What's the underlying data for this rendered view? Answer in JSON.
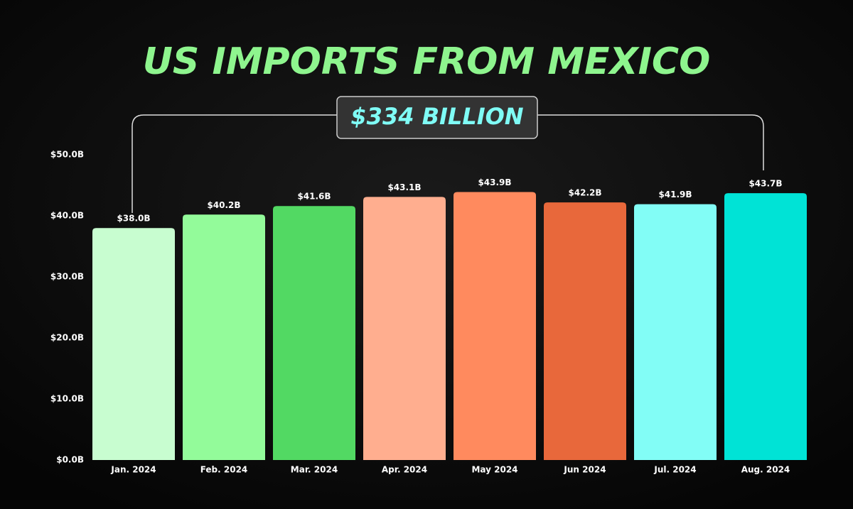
{
  "chart_data": {
    "type": "bar",
    "title": "US IMPORTS FROM MEXICO",
    "annotation": "$334 BILLION",
    "categories": [
      "Jan. 2024",
      "Feb. 2024",
      "Mar. 2024",
      "Apr. 2024",
      "May 2024",
      "Jun 2024",
      "Jul. 2024",
      "Aug. 2024"
    ],
    "values": [
      38.0,
      40.2,
      41.6,
      43.1,
      43.9,
      42.2,
      41.9,
      43.7
    ],
    "value_labels": [
      "$38.0B",
      "$40.2B",
      "$41.6B",
      "$43.1B",
      "$43.9B",
      "$42.2B",
      "$41.9B",
      "$43.7B"
    ],
    "colors": [
      "#c8fdd0",
      "#93fb9a",
      "#52d963",
      "#ffae8f",
      "#ff8a5e",
      "#e8683b",
      "#82fdf6",
      "#00e3d6"
    ],
    "ylim": [
      0,
      50
    ],
    "yticks": [
      {
        "value": 0,
        "label": "$0.0B"
      },
      {
        "value": 10,
        "label": "$10.0B"
      },
      {
        "value": 20,
        "label": "$20.0B"
      },
      {
        "value": 30,
        "label": "$30.0B"
      },
      {
        "value": 40,
        "label": "$40.0B"
      },
      {
        "value": 50,
        "label": "$50.0B"
      }
    ],
    "grid": false
  }
}
